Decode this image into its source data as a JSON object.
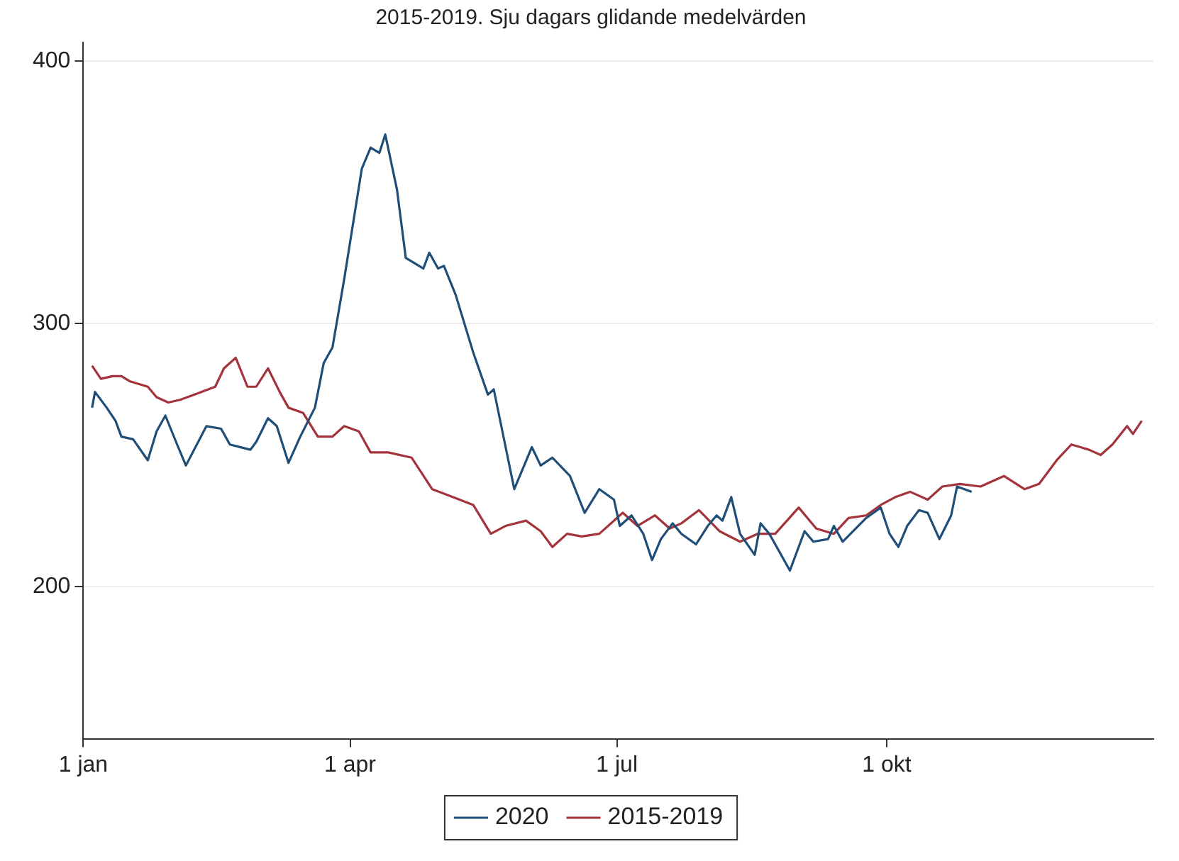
{
  "chart_data": {
    "type": "line",
    "title": "2015-2019. Sju dagars glidande medelvärden",
    "xlim": [
      "--01-01",
      "--12-31"
    ],
    "xticks": [
      {
        "value": "--01-01",
        "label": "1 jan"
      },
      {
        "value": "--04-01",
        "label": "1 apr"
      },
      {
        "value": "--07-01",
        "label": "1 jul"
      },
      {
        "value": "--10-01",
        "label": "1 okt"
      }
    ],
    "ylim": [
      142,
      407
    ],
    "yticks": [
      200,
      300,
      400
    ],
    "grid": "y",
    "legend": "bottom",
    "marker": "none",
    "line_style": "solid",
    "series": [
      {
        "name": "2020",
        "color": "#1f4e79",
        "x": [
          "--01-04",
          "--01-05",
          "--01-09",
          "--01-12",
          "--01-14",
          "--01-18",
          "--01-23",
          "--01-26",
          "--01-29",
          "--02-02",
          "--02-05",
          "--02-12",
          "--02-17",
          "--02-20",
          "--02-27",
          "--02-29",
          "--03-04",
          "--03-07",
          "--03-11",
          "--03-15",
          "--03-20",
          "--03-23",
          "--03-26",
          "--03-30",
          "--04-05",
          "--04-08",
          "--04-11",
          "--04-13",
          "--04-17",
          "--04-20",
          "--04-26",
          "--04-28",
          "--05-01",
          "--05-03",
          "--05-07",
          "--05-13",
          "--05-18",
          "--05-20",
          "--05-27",
          "--06-02",
          "--06-05",
          "--06-09",
          "--06-15",
          "--06-20",
          "--06-25",
          "--06-30",
          "--07-02",
          "--07-06",
          "--07-10",
          "--07-13",
          "--07-16",
          "--07-20",
          "--07-23",
          "--07-28",
          "--08-01",
          "--08-04",
          "--08-06",
          "--08-09",
          "--08-12",
          "--08-17",
          "--08-19",
          "--08-22",
          "--08-26",
          "--08-29",
          "--09-03",
          "--09-06",
          "--09-11",
          "--09-13",
          "--09-16",
          "--09-24",
          "--09-29",
          "--10-02",
          "--10-05",
          "--10-08",
          "--10-12",
          "--10-15",
          "--10-19",
          "--10-23",
          "--10-25",
          "--10-30"
        ],
        "values": [
          268,
          274,
          268,
          263,
          257,
          256,
          248,
          259,
          265,
          254,
          246,
          261,
          260,
          254,
          252,
          255,
          264,
          261,
          247,
          257,
          268,
          285,
          291,
          317,
          359,
          367,
          365,
          372,
          351,
          325,
          321,
          327,
          321,
          322,
          311,
          289,
          273,
          275,
          237,
          253,
          246,
          249,
          242,
          228,
          237,
          233,
          223,
          227,
          220,
          210,
          218,
          224,
          220,
          216,
          223,
          227,
          225,
          234,
          220,
          212,
          224,
          220,
          212,
          206,
          221,
          217,
          218,
          223,
          217,
          226,
          230,
          220,
          215,
          223,
          229,
          228,
          218,
          227,
          238,
          236
        ]
      },
      {
        "name": "2015-2019",
        "color": "#a3343b",
        "x": [
          "--01-04",
          "--01-07",
          "--01-11",
          "--01-14",
          "--01-17",
          "--01-23",
          "--01-26",
          "--01-30",
          "--02-03",
          "--02-08",
          "--02-15",
          "--02-18",
          "--02-22",
          "--02-26",
          "--02-29",
          "--03-04",
          "--03-08",
          "--03-11",
          "--03-16",
          "--03-21",
          "--03-26",
          "--03-30",
          "--04-04",
          "--04-08",
          "--04-14",
          "--04-22",
          "--04-29",
          "--05-06",
          "--05-13",
          "--05-19",
          "--05-24",
          "--05-31",
          "--06-05",
          "--06-09",
          "--06-14",
          "--06-19",
          "--06-25",
          "--07-03",
          "--07-08",
          "--07-14",
          "--07-19",
          "--07-23",
          "--07-29",
          "--08-05",
          "--08-12",
          "--08-18",
          "--08-24",
          "--09-01",
          "--09-07",
          "--09-13",
          "--09-18",
          "--09-24",
          "--09-29",
          "--10-04",
          "--10-09",
          "--10-15",
          "--10-20",
          "--10-26",
          "--11-02",
          "--11-10",
          "--11-17",
          "--11-22",
          "--11-28",
          "--12-03",
          "--12-09",
          "--12-13",
          "--12-17",
          "--12-22",
          "--12-24",
          "--12-27"
        ],
        "values": [
          284,
          279,
          280,
          280,
          278,
          276,
          272,
          270,
          271,
          273,
          276,
          283,
          287,
          276,
          276,
          283,
          274,
          268,
          266,
          257,
          257,
          261,
          259,
          251,
          251,
          249,
          237,
          234,
          231,
          220,
          223,
          225,
          221,
          215,
          220,
          219,
          220,
          228,
          223,
          227,
          222,
          224,
          229,
          221,
          217,
          220,
          220,
          230,
          222,
          220,
          226,
          227,
          231,
          234,
          236,
          233,
          238,
          239,
          238,
          242,
          237,
          239,
          248,
          254,
          252,
          250,
          254,
          261,
          258,
          263
        ]
      }
    ]
  }
}
